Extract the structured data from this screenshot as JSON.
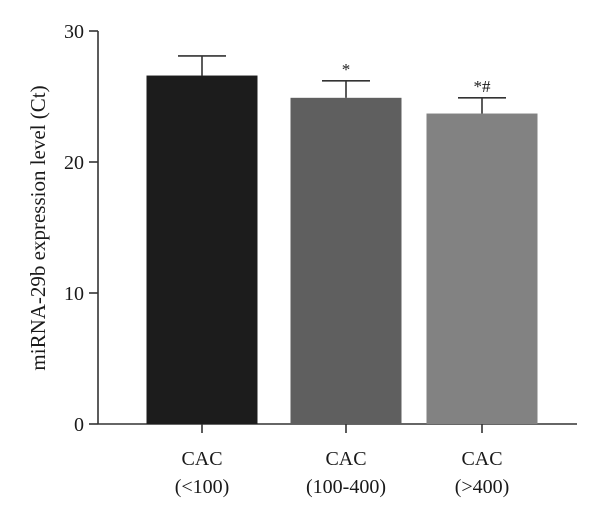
{
  "chart_data": {
    "type": "bar",
    "title": "",
    "xlabel": "",
    "ylabel": "miRNA-29b expression level (Ct)",
    "ylim": [
      0,
      30
    ],
    "yticks": [
      "0",
      "10",
      "20",
      "30"
    ],
    "grid": false,
    "categories": [
      {
        "line1": "CAC",
        "line2": "(<100)"
      },
      {
        "line1": "CAC",
        "line2": "(100-400)"
      },
      {
        "line1": "CAC",
        "line2": "(>400)"
      }
    ],
    "values": [
      26.6,
      24.9,
      23.7
    ],
    "errors": [
      1.5,
      1.3,
      1.2
    ],
    "annotations": [
      "",
      "*",
      "*#"
    ],
    "colors": [
      "#1c1c1c",
      "#5f5f5f",
      "#828282"
    ]
  }
}
